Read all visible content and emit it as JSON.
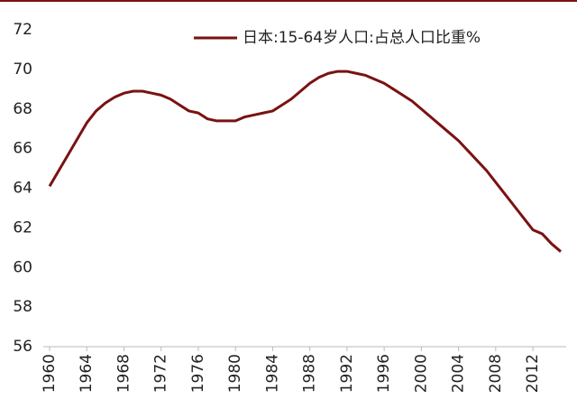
{
  "chart_data": {
    "type": "line",
    "x": [
      1960,
      1961,
      1962,
      1963,
      1964,
      1965,
      1966,
      1967,
      1968,
      1969,
      1970,
      1971,
      1972,
      1973,
      1974,
      1975,
      1976,
      1977,
      1978,
      1979,
      1980,
      1981,
      1982,
      1983,
      1984,
      1985,
      1986,
      1987,
      1988,
      1989,
      1990,
      1991,
      1992,
      1993,
      1994,
      1995,
      1996,
      1997,
      1998,
      1999,
      2000,
      2001,
      2002,
      2003,
      2004,
      2005,
      2006,
      2007,
      2008,
      2009,
      2010,
      2011,
      2012,
      2013,
      2014,
      2015
    ],
    "series": [
      {
        "name": "日本:15-64岁人口:占总人口比重%",
        "color": "#7a1212",
        "values": [
          64.1,
          64.9,
          65.7,
          66.5,
          67.3,
          67.9,
          68.3,
          68.6,
          68.8,
          68.9,
          68.9,
          68.8,
          68.7,
          68.5,
          68.2,
          67.9,
          67.8,
          67.5,
          67.4,
          67.4,
          67.4,
          67.6,
          67.7,
          67.8,
          67.9,
          68.2,
          68.5,
          68.9,
          69.3,
          69.6,
          69.8,
          69.9,
          69.9,
          69.8,
          69.7,
          69.5,
          69.3,
          69.0,
          68.7,
          68.4,
          68.0,
          67.6,
          67.2,
          66.8,
          66.4,
          65.9,
          65.4,
          64.9,
          64.3,
          63.7,
          63.1,
          62.5,
          61.9,
          61.7,
          61.2,
          60.8
        ]
      }
    ],
    "xlim": [
      1960,
      2015
    ],
    "xticks": [
      1960,
      1964,
      1968,
      1972,
      1976,
      1980,
      1984,
      1988,
      1992,
      1996,
      2000,
      2004,
      2008,
      2012
    ],
    "ylim": [
      56,
      72
    ],
    "yticks": [
      56,
      58,
      60,
      62,
      64,
      66,
      68,
      70,
      72
    ],
    "grid": false,
    "legend": "top-right"
  }
}
